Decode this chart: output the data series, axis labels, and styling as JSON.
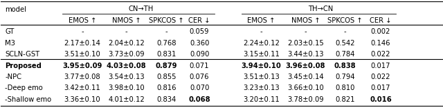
{
  "rows": [
    {
      "model": "GT",
      "bold_model": false,
      "cn_emos": "-",
      "cn_nmos": "-",
      "cn_spkcos": "-",
      "cn_cer": "0.059",
      "th_emos": "-",
      "th_nmos": "-",
      "th_spkcos": "-",
      "th_cer": "0.002"
    },
    {
      "model": "M3",
      "bold_model": false,
      "cn_emos": "2.17±0.14",
      "cn_nmos": "2.04±0.12",
      "cn_spkcos": "0.768",
      "cn_cer": "0.360",
      "th_emos": "2.24±0.12",
      "th_nmos": "2.03±0.15",
      "th_spkcos": "0.542",
      "th_cer": "0.146"
    },
    {
      "model": "SCLN-GST",
      "bold_model": false,
      "cn_emos": "3.51±0.10",
      "cn_nmos": "3.73±0.09",
      "cn_spkcos": "0.831",
      "cn_cer": "0.090",
      "th_emos": "3.15±0.11",
      "th_nmos": "3.44±0.13",
      "th_spkcos": "0.784",
      "th_cer": "0.022"
    },
    {
      "model": "Proposed",
      "bold_model": true,
      "cn_emos": "3.95±0.09",
      "cn_nmos": "4.03±0.08",
      "cn_spkcos": "0.879",
      "cn_cer": "0.071",
      "th_emos": "3.94±0.10",
      "th_nmos": "3.96±0.08",
      "th_spkcos": "0.838",
      "th_cer": "0.017"
    },
    {
      "model": "-NPC",
      "bold_model": false,
      "cn_emos": "3.77±0.08",
      "cn_nmos": "3.54±0.13",
      "cn_spkcos": "0.855",
      "cn_cer": "0.076",
      "th_emos": "3.51±0.13",
      "th_nmos": "3.45±0.14",
      "th_spkcos": "0.794",
      "th_cer": "0.022"
    },
    {
      "model": "-Deep emo",
      "bold_model": false,
      "cn_emos": "3.42±0.11",
      "cn_nmos": "3.98±0.10",
      "cn_spkcos": "0.816",
      "cn_cer": "0.070",
      "th_emos": "3.23±0.13",
      "th_nmos": "3.66±0.10",
      "th_spkcos": "0.810",
      "th_cer": "0.017"
    },
    {
      "model": "-Shallow emo",
      "bold_model": false,
      "cn_emos": "3.36±0.10",
      "cn_nmos": "4.01±0.12",
      "cn_spkcos": "0.834",
      "cn_cer": "0.068",
      "th_emos": "3.20±0.11",
      "th_nmos": "3.78±0.09",
      "th_spkcos": "0.821",
      "th_cer": "0.016"
    }
  ],
  "bold_cells": {
    "Proposed": [
      "cn_emos",
      "cn_nmos",
      "cn_spkcos",
      "th_emos",
      "th_nmos",
      "th_spkcos"
    ],
    "-Shallow emo": [
      "cn_cer",
      "th_cer"
    ]
  },
  "cn_group_label": "CN→TH",
  "th_group_label": "TH→CN",
  "col_labels": [
    "EMOS ↑",
    "NMOS ↑",
    "SPKCOS ↑",
    "CER ↓"
  ],
  "model_col_label": "model",
  "fontsize": 7.2,
  "figsize": [
    6.4,
    1.63
  ],
  "dpi": 100
}
